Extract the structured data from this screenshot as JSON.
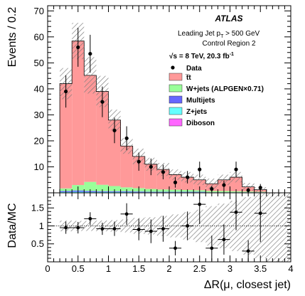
{
  "chart_data": [
    {
      "type": "bar",
      "panel": "main",
      "ylabel": "Events / 0.2",
      "xlim": [
        0,
        4
      ],
      "ylim": [
        0,
        72
      ],
      "x_ticks": [
        "0",
        "0.5",
        "1",
        "1.5",
        "2",
        "2.5",
        "3",
        "3.5",
        "4"
      ],
      "y_ticks": [
        "10",
        "20",
        "30",
        "40",
        "50",
        "60",
        "70"
      ],
      "bin_edges": [
        0.2,
        0.4,
        0.6,
        0.8,
        1.0,
        1.2,
        1.4,
        1.6,
        1.8,
        2.0,
        2.2,
        2.4,
        2.6,
        2.8,
        3.0,
        3.2,
        3.4,
        3.6
      ],
      "stack": [
        {
          "name": "Diboson",
          "color": "#ff66ff",
          "values": [
            0,
            0,
            0,
            0,
            0,
            0,
            0,
            0,
            0,
            0,
            0,
            0,
            0,
            0,
            0,
            0,
            0
          ]
        },
        {
          "name": "Z+jets",
          "color": "#66ffff",
          "values": [
            0.3,
            0.4,
            0.3,
            0.3,
            0.3,
            0.3,
            0.2,
            0.2,
            0.2,
            0.2,
            0.2,
            0.2,
            0.1,
            0.1,
            0.1,
            0.1,
            0.1
          ]
        },
        {
          "name": "Multijets",
          "color": "#6666ff",
          "values": [
            0.4,
            0.5,
            0.4,
            0.3,
            0.3,
            0.3,
            0.3,
            0.2,
            0.2,
            0.2,
            0.2,
            0.2,
            0.1,
            0.1,
            0.1,
            0.1,
            0.1
          ]
        },
        {
          "name": "W+jets (ALPGEN×0.71)",
          "color": "#99ff99",
          "values": [
            1.0,
            2.1,
            3.5,
            2.5,
            2.0,
            1.5,
            1.3,
            1.1,
            0.9,
            0.8,
            0.7,
            0.6,
            0.5,
            0.5,
            0.4,
            0.3,
            0.2
          ]
        },
        {
          "name": "t̅t",
          "color": "#ff9999",
          "values": [
            40.3,
            55.4,
            41.0,
            35.9,
            25.4,
            15.9,
            12.2,
            9.5,
            7.7,
            5.8,
            4.9,
            4.0,
            2.8,
            4.3,
            5.4,
            1.8,
            0.8
          ]
        }
      ],
      "uncertainty_band": [
        6,
        7,
        7,
        6,
        4,
        3,
        3,
        2.5,
        2.5,
        2,
        2,
        2,
        2,
        2,
        2,
        1.5,
        1
      ],
      "data": {
        "name": "Data",
        "x": [
          0.3,
          0.5,
          0.7,
          0.9,
          1.1,
          1.3,
          1.5,
          1.7,
          1.9,
          2.1,
          2.3,
          2.5,
          2.7,
          2.9,
          3.1,
          3.3,
          3.5
        ],
        "y": [
          39,
          56,
          53.5,
          35,
          24,
          21,
          12,
          10,
          8,
          4,
          6,
          9,
          1.5,
          3,
          9,
          1,
          2
        ],
        "err": [
          6.2,
          7.5,
          7.3,
          5.9,
          4.9,
          4.6,
          3.5,
          3.2,
          2.8,
          2.0,
          2.4,
          3.0,
          1.2,
          1.7,
          3.0,
          1.0,
          1.4
        ]
      },
      "text": {
        "atlas": "ATLAS",
        "selection_line1": "Leading Jet p",
        "selection_sub": "T",
        "selection_line1_end": " > 500 GeV",
        "selection_line2": "Control Region 2",
        "energy": "√s = 8 TeV, 20.3 fb",
        "energy_sup": "-1"
      },
      "legend": [
        "Data",
        "t̅t",
        "W+jets (ALPGEN×0.71)",
        "Multijets",
        "Z+jets",
        "Diboson"
      ]
    },
    {
      "type": "scatter",
      "panel": "ratio",
      "ylabel": "Data/MC",
      "xlabel": "ΔR(μ, closest jet)",
      "xlim": [
        0,
        4
      ],
      "ylim": [
        0,
        1.92
      ],
      "y_ticks": [
        "0.5",
        "1",
        "1.5"
      ],
      "x": [
        0.3,
        0.5,
        0.7,
        0.9,
        1.1,
        1.3,
        1.5,
        1.7,
        1.9,
        2.1,
        2.3,
        2.5,
        2.7,
        2.9,
        3.1,
        3.3,
        3.5
      ],
      "y": [
        0.95,
        0.95,
        1.2,
        0.92,
        0.92,
        1.33,
        0.9,
        0.85,
        0.92,
        0.38,
        1.0,
        1.6,
        0.38,
        0.62,
        1.38,
        0.3,
        1.35
      ],
      "err": [
        0.17,
        0.16,
        0.18,
        0.17,
        0.2,
        0.3,
        0.3,
        0.33,
        0.36,
        0.2,
        0.4,
        0.55,
        0.35,
        0.42,
        0.5,
        0.3,
        0.8
      ],
      "band": [
        0.15,
        0.14,
        0.14,
        0.15,
        0.16,
        0.18,
        0.22,
        0.24,
        0.28,
        0.32,
        0.38,
        0.45,
        0.55,
        0.62,
        0.7,
        0.8,
        0.9
      ]
    }
  ]
}
